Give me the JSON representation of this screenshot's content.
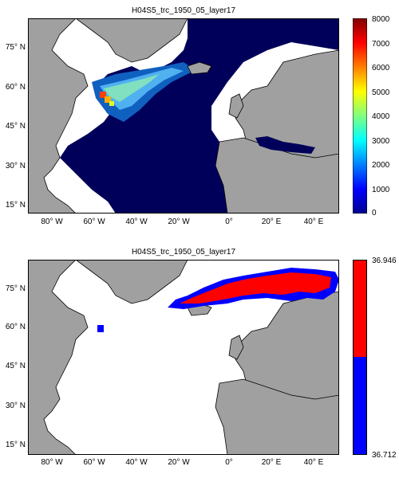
{
  "panel1": {
    "title": "H04S5_trc_1950_05_layer17",
    "y_labels": [
      "75° N",
      "60° N",
      "45° N",
      "30° N",
      "15° N"
    ],
    "x_labels": [
      "80° W",
      "60° W",
      "40° W",
      "20° W",
      "0°",
      "20° E",
      "40° E"
    ],
    "colorbar_ticks": [
      "8000",
      "7000",
      "6000",
      "5000",
      "4000",
      "3000",
      "2000",
      "1000",
      "0"
    ],
    "colorbar_range": [
      0,
      8000
    ],
    "colormap": "jet",
    "ocean_color": "#00005a",
    "land_color": "#a0a0a0"
  },
  "panel2": {
    "title": "H04S5_trc_1950_05_layer17",
    "y_labels": [
      "75° N",
      "60° N",
      "45° N",
      "30° N",
      "15° N"
    ],
    "x_labels": [
      "80° W",
      "60° W",
      "40° W",
      "20° W",
      "0°",
      "20° E",
      "40° E"
    ],
    "colorbar_ticks": [
      "36.946",
      "36.712"
    ],
    "colorbar_colors": [
      "#ff0000",
      "#0000ff"
    ],
    "land_color": "#a0a0a0"
  }
}
